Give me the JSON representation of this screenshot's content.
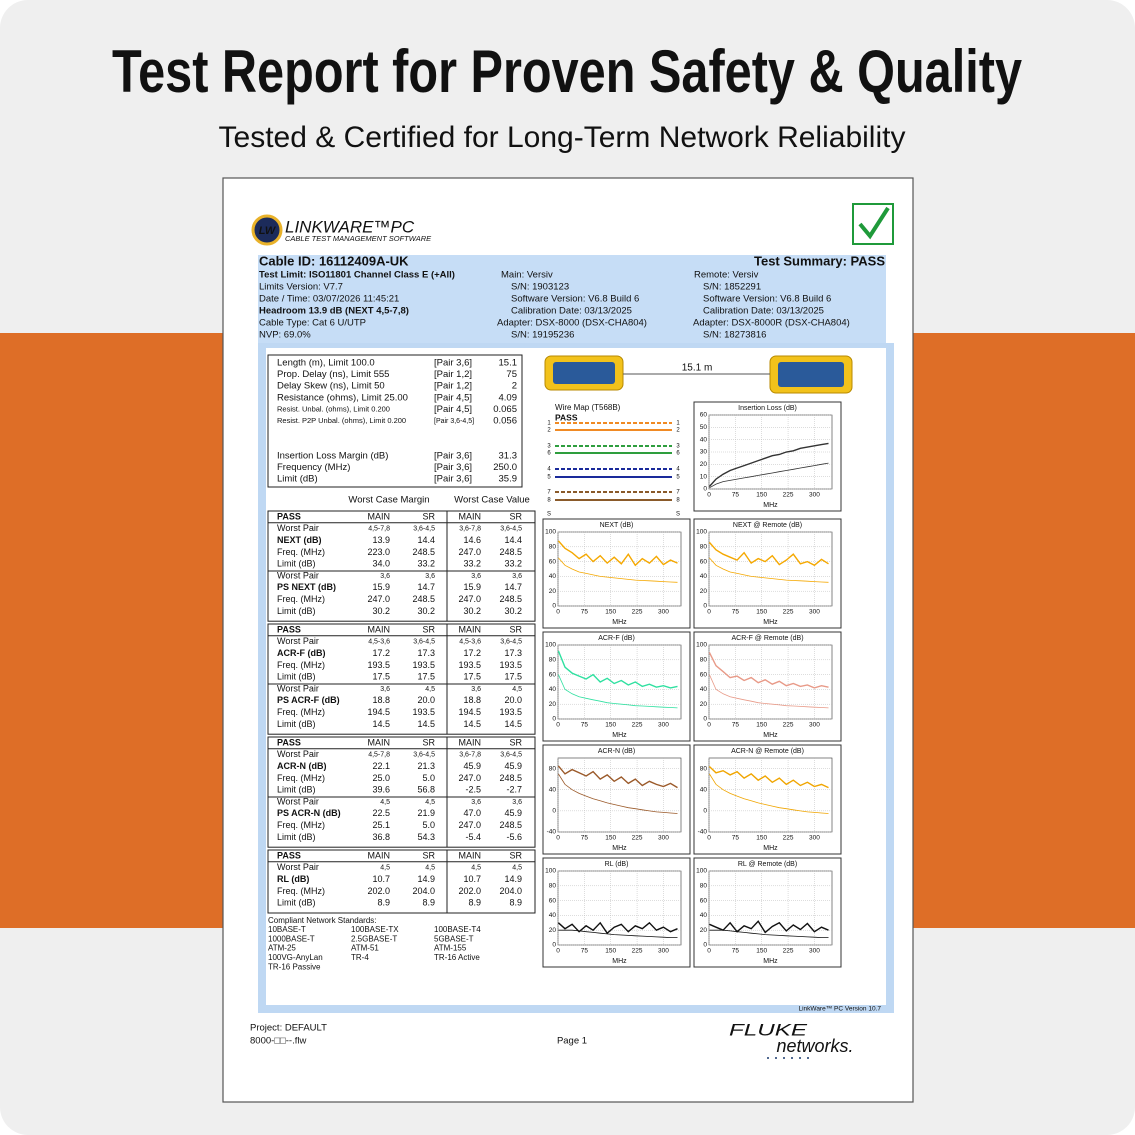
{
  "banner": {
    "title": "Test Report for Proven Safety & Quality",
    "subtitle": "Tested & Certified for Long-Term Network Reliability"
  },
  "logo": {
    "name": "LW",
    "product": "LINKWARE™PC",
    "tagline": "CABLE TEST MANAGEMENT SOFTWARE"
  },
  "header": {
    "cable_id": "Cable ID: 16112409A-UK",
    "summary": "Test Summary: PASS",
    "left": [
      "Test Limit: ISO11801 Channel Class E (+All)",
      "Limits Version: V7.7",
      "Date / Time: 03/07/2026  11:45:21",
      "Headroom 13.9 dB (NEXT 4,5-7,8)",
      "Cable Type: Cat 6 U/UTP",
      "NVP: 69.0%"
    ],
    "main": [
      "Main: Versiv",
      "S/N: 1903123",
      "Software Version: V6.8 Build 6",
      "Calibration Date: 03/13/2025",
      "Adapter: DSX-8000 (DSX-CHA804)",
      "S/N: 19195236"
    ],
    "remote": [
      "Remote: Versiv",
      "S/N: 1852291",
      "Software Version: V6.8 Build 6",
      "Calibration Date: 03/13/2025",
      "Adapter: DSX-8000R (DSX-CHA804)",
      "S/N: 18273816"
    ]
  },
  "summary_box": [
    [
      "Length (m), Limit 100.0",
      "[Pair 3,6]",
      "15.1"
    ],
    [
      "Prop. Delay (ns), Limit 555",
      "[Pair 1,2]",
      "75"
    ],
    [
      "Delay Skew (ns), Limit 50",
      "[Pair 1,2]",
      "2"
    ],
    [
      "Resistance (ohms), Limit 25.00",
      "[Pair 4,5]",
      "4.09"
    ],
    [
      "Resist. Unbal. (ohms), Limit 0.200",
      "[Pair 4,5]",
      "0.065"
    ],
    [
      "Resist. P2P Unbal. (ohms), Limit 0.200",
      "[Pair 3,6-4,5]",
      "0.056"
    ],
    [
      "Insertion Loss Margin (dB)",
      "[Pair 3,6]",
      "31.3"
    ],
    [
      "Frequency (MHz)",
      "[Pair 3,6]",
      "250.0"
    ],
    [
      "Limit (dB)",
      "[Pair 3,6]",
      "35.9"
    ]
  ],
  "column_headers": [
    "Worst Case Margin",
    "Worst Case Value"
  ],
  "blocks": [
    {
      "header": [
        "PASS",
        "MAIN",
        "SR",
        "MAIN",
        "SR"
      ],
      "rows": [
        [
          "Worst Pair",
          "4,5-7,8",
          "3,6-4,5",
          "3,6-7,8",
          "3,6-4,5"
        ],
        [
          "NEXT (dB)",
          "13.9",
          "14.4",
          "14.6",
          "14.4"
        ],
        [
          "Freq. (MHz)",
          "223.0",
          "248.5",
          "247.0",
          "248.5"
        ],
        [
          "Limit (dB)",
          "34.0",
          "33.2",
          "33.2",
          "33.2"
        ],
        [
          "Worst Pair",
          "3,6",
          "3,6",
          "3,6",
          "3,6"
        ],
        [
          "PS NEXT (dB)",
          "15.9",
          "14.7",
          "15.9",
          "14.7"
        ],
        [
          "Freq. (MHz)",
          "247.0",
          "248.5",
          "247.0",
          "248.5"
        ],
        [
          "Limit (dB)",
          "30.2",
          "30.2",
          "30.2",
          "30.2"
        ]
      ]
    },
    {
      "header": [
        "PASS",
        "MAIN",
        "SR",
        "MAIN",
        "SR"
      ],
      "rows": [
        [
          "Worst Pair",
          "4,5-3,6",
          "3,6-4,5",
          "4,5-3,6",
          "3,6-4,5"
        ],
        [
          "ACR-F (dB)",
          "17.2",
          "17.3",
          "17.2",
          "17.3"
        ],
        [
          "Freq. (MHz)",
          "193.5",
          "193.5",
          "193.5",
          "193.5"
        ],
        [
          "Limit (dB)",
          "17.5",
          "17.5",
          "17.5",
          "17.5"
        ],
        [
          "Worst Pair",
          "3,6",
          "4,5",
          "3,6",
          "4,5"
        ],
        [
          "PS ACR-F (dB)",
          "18.8",
          "20.0",
          "18.8",
          "20.0"
        ],
        [
          "Freq. (MHz)",
          "194.5",
          "193.5",
          "194.5",
          "193.5"
        ],
        [
          "Limit (dB)",
          "14.5",
          "14.5",
          "14.5",
          "14.5"
        ]
      ]
    },
    {
      "header": [
        "PASS",
        "MAIN",
        "SR",
        "MAIN",
        "SR"
      ],
      "rows": [
        [
          "Worst Pair",
          "4,5-7,8",
          "3,6-4,5",
          "3,6-7,8",
          "3,6-4,5"
        ],
        [
          "ACR-N (dB)",
          "22.1",
          "21.3",
          "45.9",
          "45.9"
        ],
        [
          "Freq. (MHz)",
          "25.0",
          "5.0",
          "247.0",
          "248.5"
        ],
        [
          "Limit (dB)",
          "39.6",
          "56.8",
          "-2.5",
          "-2.7"
        ],
        [
          "Worst Pair",
          "4,5",
          "4,5",
          "3,6",
          "3,6"
        ],
        [
          "PS ACR-N (dB)",
          "22.5",
          "21.9",
          "47.0",
          "45.9"
        ],
        [
          "Freq. (MHz)",
          "25.1",
          "5.0",
          "247.0",
          "248.5"
        ],
        [
          "Limit (dB)",
          "36.8",
          "54.3",
          "-5.4",
          "-5.6"
        ]
      ]
    },
    {
      "header": [
        "PASS",
        "MAIN",
        "SR",
        "MAIN",
        "SR"
      ],
      "rows": [
        [
          "Worst Pair",
          "4,5",
          "4,5",
          "4,5",
          "4,5"
        ],
        [
          "RL (dB)",
          "10.7",
          "14.9",
          "10.7",
          "14.9"
        ],
        [
          "Freq. (MHz)",
          "202.0",
          "204.0",
          "202.0",
          "204.0"
        ],
        [
          "Limit (dB)",
          "8.9",
          "8.9",
          "8.9",
          "8.9"
        ]
      ]
    }
  ],
  "standards": {
    "title": "Compliant Network Standards:",
    "items": [
      "10BASE-T",
      "100BASE-TX",
      "100BASE-T4",
      "1000BASE-T",
      "2.5GBASE-T",
      "5GBASE-T",
      "ATM-25",
      "ATM-51",
      "ATM-155",
      "100VG-AnyLan",
      "TR-4",
      "TR-16 Active",
      "TR-16 Passive"
    ]
  },
  "link_length": "15.1 m",
  "wire_map": {
    "title": "Wire Map (T568B)",
    "result": "PASS",
    "pins": [
      "1",
      "2",
      "3",
      "6",
      "4",
      "5",
      "7",
      "8"
    ],
    "shield": "S"
  },
  "charts": [
    {
      "title": "Insertion Loss (dB)",
      "xlabel": "MHz",
      "xlim": [
        0,
        350
      ],
      "xticks": [
        0,
        75,
        150,
        225,
        300
      ],
      "ylim": [
        0,
        60
      ],
      "yticks": [
        0,
        10,
        20,
        30,
        40,
        50,
        60
      ],
      "x": [
        1,
        20,
        40,
        60,
        80,
        100,
        120,
        140,
        160,
        180,
        200,
        220,
        240,
        260,
        280,
        300,
        320,
        340
      ],
      "series": [
        {
          "color": "#333333",
          "values": [
            2,
            8,
            12,
            15,
            17,
            19,
            21,
            23,
            25,
            27,
            28,
            30,
            31,
            33,
            34,
            35,
            36,
            37
          ]
        },
        {
          "color": "#333333",
          "values": [
            1,
            4,
            6,
            7,
            8,
            9,
            10,
            11,
            12,
            13,
            14,
            15,
            16,
            17,
            18,
            19,
            20,
            21
          ]
        }
      ]
    },
    {
      "title": "NEXT (dB)",
      "xlabel": "MHz",
      "xlim": [
        0,
        350
      ],
      "xticks": [
        0,
        75,
        150,
        225,
        300
      ],
      "ylim": [
        0,
        100
      ],
      "yticks": [
        0,
        20,
        40,
        60,
        80,
        100
      ],
      "x": [
        1,
        20,
        40,
        60,
        80,
        100,
        120,
        140,
        160,
        180,
        200,
        220,
        240,
        260,
        280,
        300,
        320,
        340
      ],
      "series": [
        {
          "color": "#f5a800",
          "values": [
            88,
            78,
            72,
            64,
            70,
            60,
            68,
            58,
            66,
            57,
            70,
            55,
            64,
            58,
            67,
            56,
            62,
            58
          ]
        },
        {
          "color": "#f5a800",
          "values": [
            65,
            55,
            50,
            46,
            44,
            42,
            40,
            39,
            38,
            37,
            36,
            35,
            34.5,
            34,
            33.5,
            33,
            32.5,
            32
          ]
        }
      ]
    },
    {
      "title": "NEXT @ Remote (dB)",
      "xlabel": "MHz",
      "xlim": [
        0,
        350
      ],
      "xticks": [
        0,
        75,
        150,
        225,
        300
      ],
      "ylim": [
        0,
        100
      ],
      "yticks": [
        0,
        20,
        40,
        60,
        80,
        100
      ],
      "x": [
        1,
        20,
        40,
        60,
        80,
        100,
        120,
        140,
        160,
        180,
        200,
        220,
        240,
        260,
        280,
        300,
        320,
        340
      ],
      "series": [
        {
          "color": "#f5a800",
          "values": [
            86,
            76,
            70,
            66,
            62,
            72,
            58,
            64,
            60,
            68,
            56,
            62,
            70,
            57,
            60,
            55,
            63,
            57
          ]
        },
        {
          "color": "#f5a800",
          "values": [
            65,
            55,
            50,
            46,
            44,
            42,
            40,
            39,
            38,
            37,
            36,
            35,
            34.5,
            34,
            33.5,
            33,
            32.5,
            32
          ]
        }
      ]
    },
    {
      "title": "ACR-F (dB)",
      "xlabel": "MHz",
      "xlim": [
        0,
        350
      ],
      "xticks": [
        0,
        75,
        150,
        225,
        300
      ],
      "ylim": [
        0,
        100
      ],
      "yticks": [
        0,
        20,
        40,
        60,
        80,
        100
      ],
      "x": [
        1,
        20,
        40,
        60,
        80,
        100,
        120,
        140,
        160,
        180,
        200,
        220,
        240,
        260,
        280,
        300,
        320,
        340
      ],
      "series": [
        {
          "color": "#2fe0a0",
          "values": [
            92,
            70,
            62,
            58,
            54,
            60,
            50,
            55,
            48,
            52,
            46,
            50,
            44,
            47,
            43,
            45,
            42,
            44
          ]
        },
        {
          "color": "#2fe0a0",
          "values": [
            60,
            40,
            34,
            30,
            28,
            26,
            24,
            22,
            21,
            20,
            19,
            18,
            17.5,
            17,
            16.5,
            16,
            15.5,
            15
          ]
        }
      ]
    },
    {
      "title": "ACR-F @ Remote (dB)",
      "xlabel": "MHz",
      "xlim": [
        0,
        350
      ],
      "xticks": [
        0,
        75,
        150,
        225,
        300
      ],
      "ylim": [
        0,
        100
      ],
      "yticks": [
        0,
        20,
        40,
        60,
        80,
        100
      ],
      "x": [
        1,
        20,
        40,
        60,
        80,
        100,
        120,
        140,
        160,
        180,
        200,
        220,
        240,
        260,
        280,
        300,
        320,
        340
      ],
      "series": [
        {
          "color": "#e89a88",
          "values": [
            90,
            72,
            64,
            56,
            58,
            52,
            56,
            49,
            53,
            47,
            51,
            45,
            48,
            44,
            46,
            42,
            45,
            43
          ]
        },
        {
          "color": "#e89a88",
          "values": [
            60,
            40,
            34,
            30,
            28,
            26,
            24,
            22,
            21,
            20,
            19,
            18,
            17.5,
            17,
            16.5,
            16,
            15.5,
            15
          ]
        }
      ]
    },
    {
      "title": "ACR-N (dB)",
      "xlabel": "MHz",
      "xlim": [
        0,
        350
      ],
      "xticks": [
        0,
        75,
        150,
        225,
        300
      ],
      "ylim": [
        -40,
        100
      ],
      "yticks": [
        -40,
        0,
        40,
        80
      ],
      "x": [
        1,
        20,
        40,
        60,
        80,
        100,
        120,
        140,
        160,
        180,
        200,
        220,
        240,
        260,
        280,
        300,
        320,
        340
      ],
      "series": [
        {
          "color": "#9b5a2a",
          "values": [
            85,
            70,
            78,
            72,
            66,
            74,
            60,
            68,
            56,
            64,
            52,
            60,
            48,
            56,
            50,
            46,
            52,
            44
          ]
        },
        {
          "color": "#9b5a2a",
          "values": [
            70,
            50,
            40,
            33,
            28,
            23,
            19,
            15,
            12,
            9,
            6,
            4,
            2,
            0,
            -2,
            -3,
            -4,
            -5
          ]
        }
      ]
    },
    {
      "title": "ACR-N @ Remote (dB)",
      "xlabel": "MHz",
      "xlim": [
        0,
        350
      ],
      "xticks": [
        0,
        75,
        150,
        225,
        300
      ],
      "ylim": [
        -40,
        100
      ],
      "yticks": [
        -40,
        0,
        40,
        80
      ],
      "x": [
        1,
        20,
        40,
        60,
        80,
        100,
        120,
        140,
        160,
        180,
        200,
        220,
        240,
        260,
        280,
        300,
        320,
        340
      ],
      "series": [
        {
          "color": "#f0a500",
          "values": [
            84,
            72,
            76,
            68,
            74,
            62,
            70,
            58,
            66,
            54,
            62,
            50,
            58,
            48,
            54,
            46,
            50,
            44
          ]
        },
        {
          "color": "#f0a500",
          "values": [
            70,
            50,
            40,
            33,
            28,
            23,
            19,
            15,
            12,
            9,
            6,
            4,
            2,
            0,
            -2,
            -3,
            -4,
            -5
          ]
        }
      ]
    },
    {
      "title": "RL (dB)",
      "xlabel": "MHz",
      "xlim": [
        0,
        350
      ],
      "xticks": [
        0,
        75,
        150,
        225,
        300
      ],
      "ylim": [
        0,
        100
      ],
      "yticks": [
        0,
        20,
        40,
        60,
        80,
        100
      ],
      "x": [
        1,
        20,
        40,
        60,
        80,
        100,
        120,
        140,
        160,
        180,
        200,
        220,
        240,
        260,
        280,
        300,
        320,
        340
      ],
      "series": [
        {
          "color": "#111111",
          "values": [
            30,
            22,
            28,
            18,
            26,
            20,
            30,
            16,
            24,
            28,
            18,
            26,
            22,
            30,
            20,
            24,
            18,
            22
          ]
        },
        {
          "color": "#111111",
          "values": [
            20,
            20,
            20,
            19,
            18,
            17,
            16,
            15,
            14,
            13.5,
            13,
            12.5,
            12,
            11.5,
            11,
            10.5,
            10,
            10
          ]
        }
      ]
    },
    {
      "title": "RL @ Remote (dB)",
      "xlabel": "MHz",
      "xlim": [
        0,
        350
      ],
      "xticks": [
        0,
        75,
        150,
        225,
        300
      ],
      "ylim": [
        0,
        100
      ],
      "yticks": [
        0,
        20,
        40,
        60,
        80,
        100
      ],
      "x": [
        1,
        20,
        40,
        60,
        80,
        100,
        120,
        140,
        160,
        180,
        200,
        220,
        240,
        260,
        280,
        300,
        320,
        340
      ],
      "series": [
        {
          "color": "#111111",
          "values": [
            28,
            24,
            20,
            30,
            18,
            26,
            22,
            32,
            17,
            25,
            30,
            19,
            27,
            21,
            29,
            18,
            24,
            20
          ]
        },
        {
          "color": "#111111",
          "values": [
            20,
            20,
            20,
            19,
            18,
            17,
            16,
            15,
            14,
            13.5,
            13,
            12.5,
            12,
            11.5,
            11,
            10.5,
            10,
            10
          ]
        }
      ]
    }
  ],
  "footer": {
    "version": "LinkWare™ PC Version 10.7",
    "project": "Project: DEFAULT",
    "file": "8000-□□--.flw",
    "page": "Page 1",
    "brand": "FLUKE",
    "brand_sub": "networks."
  }
}
